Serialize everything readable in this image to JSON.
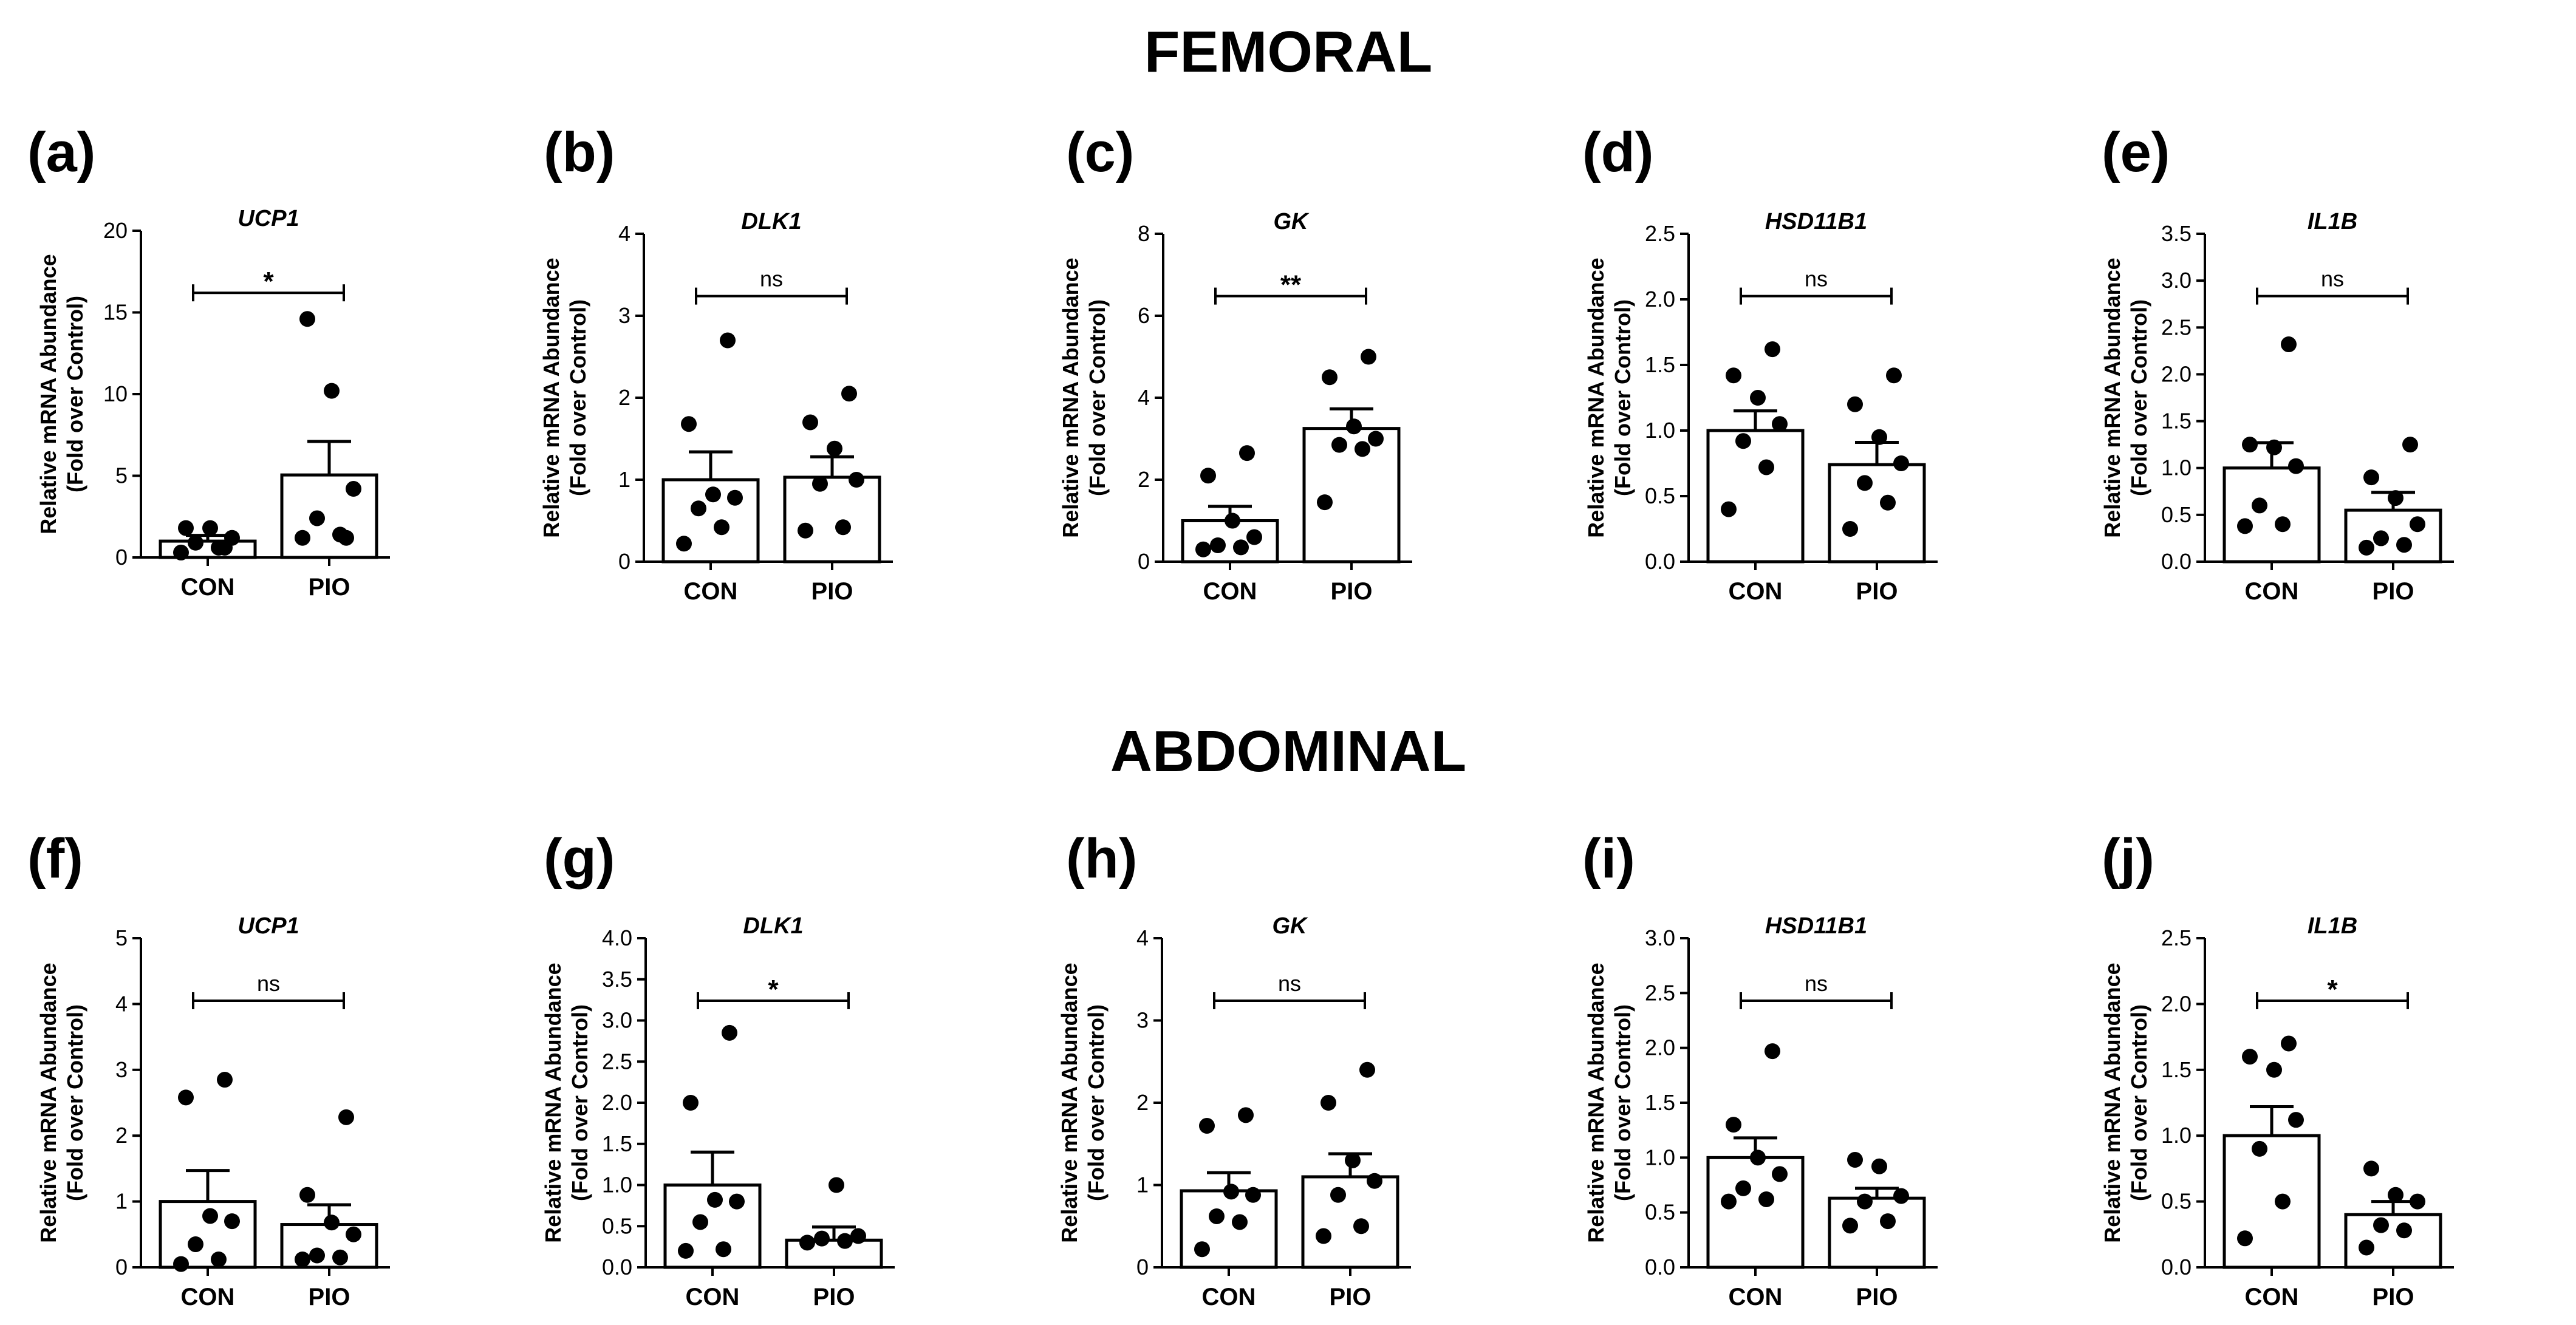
{
  "sections": [
    {
      "title": "FEMORAL"
    },
    {
      "title": "ABDOMINAL"
    }
  ],
  "chart_data": [
    {
      "type": "bar",
      "panel": "(a)",
      "section": "FEMORAL",
      "title": "UCP1",
      "categories": [
        "CON",
        "PIO"
      ],
      "ylabel": "Relative mRNA Abundance\n(Fold over Control)",
      "ylim": [
        0,
        20
      ],
      "yticks": [
        0,
        5,
        10,
        15,
        20
      ],
      "ytick_labels": [
        "0",
        "5",
        "10",
        "15",
        "20"
      ],
      "values": [
        1.0,
        5.05
      ],
      "sem": [
        0.35,
        2.05
      ],
      "points": [
        [
          0.3,
          0.6,
          0.9,
          1.2,
          1.8,
          1.8,
          0.6
        ],
        [
          1.2,
          1.4,
          2.4,
          4.2,
          10.2,
          14.6,
          1.2
        ]
      ],
      "significance": "*"
    },
    {
      "type": "bar",
      "panel": "(b)",
      "section": "FEMORAL",
      "title": "DLK1",
      "categories": [
        "CON",
        "PIO"
      ],
      "ylabel": "Relative mRNA Abundance\n(Fold over Control)",
      "ylim": [
        0,
        4
      ],
      "yticks": [
        0,
        1,
        2,
        3,
        4
      ],
      "ytick_labels": [
        "0",
        "1",
        "2",
        "3",
        "4"
      ],
      "values": [
        1.0,
        1.03
      ],
      "sem": [
        0.34,
        0.25
      ],
      "points": [
        [
          0.22,
          0.42,
          0.65,
          0.78,
          0.82,
          1.68,
          2.7
        ],
        [
          0.38,
          0.42,
          0.95,
          1.0,
          1.38,
          1.7,
          2.05
        ]
      ],
      "significance": "ns"
    },
    {
      "type": "bar",
      "panel": "(c)",
      "section": "FEMORAL",
      "title": "GK",
      "categories": [
        "CON",
        "PIO"
      ],
      "ylabel": "Relative mRNA Abundance\n(Fold over Control)",
      "ylim": [
        0,
        8
      ],
      "yticks": [
        0,
        2,
        4,
        6,
        8
      ],
      "ytick_labels": [
        "0",
        "2",
        "4",
        "6",
        "8"
      ],
      "values": [
        1.0,
        3.25
      ],
      "sem": [
        0.35,
        0.48
      ],
      "points": [
        [
          0.3,
          0.35,
          0.4,
          0.6,
          1.0,
          2.1,
          2.65
        ],
        [
          1.45,
          2.75,
          2.85,
          3.0,
          3.3,
          4.5,
          5.0
        ]
      ],
      "significance": "**"
    },
    {
      "type": "bar",
      "panel": "(d)",
      "section": "FEMORAL",
      "title": "HSD11B1",
      "categories": [
        "CON",
        "PIO"
      ],
      "ylabel": "Relative mRNA Abundance\n(Fold over Control)",
      "ylim": [
        0,
        2.5
      ],
      "yticks": [
        0,
        0.5,
        1,
        1.5,
        2,
        2.5
      ],
      "ytick_labels": [
        "0.0",
        "0.5",
        "1.0",
        "1.5",
        "2.0",
        "2.5"
      ],
      "values": [
        1.0,
        0.74
      ],
      "sem": [
        0.15,
        0.17
      ],
      "points": [
        [
          0.4,
          0.72,
          0.92,
          1.05,
          1.25,
          1.42,
          1.62
        ],
        [
          0.25,
          0.45,
          0.6,
          0.75,
          0.95,
          1.2,
          1.42
        ]
      ],
      "significance": "ns"
    },
    {
      "type": "bar",
      "panel": "(e)",
      "section": "FEMORAL",
      "title": "IL1B",
      "categories": [
        "CON",
        "PIO"
      ],
      "ylabel": "Relative mRNA Abundance\n(Fold over Control)",
      "ylim": [
        0,
        3.5
      ],
      "yticks": [
        0,
        0.5,
        1,
        1.5,
        2,
        2.5,
        3,
        3.5
      ],
      "ytick_labels": [
        "0.0",
        "0.5",
        "1.0",
        "1.5",
        "2.0",
        "2.5",
        "3.0",
        "3.5"
      ],
      "values": [
        1.0,
        0.55
      ],
      "sem": [
        0.27,
        0.19
      ],
      "points": [
        [
          0.38,
          0.4,
          0.6,
          1.02,
          1.22,
          1.25,
          2.32
        ],
        [
          0.15,
          0.18,
          0.25,
          0.4,
          0.68,
          0.9,
          1.25
        ]
      ],
      "significance": "ns"
    },
    {
      "type": "bar",
      "panel": "(f)",
      "section": "ABDOMINAL",
      "title": "UCP1",
      "categories": [
        "CON",
        "PIO"
      ],
      "ylabel": "Relative mRNA Abundance\n(Fold over Control)",
      "ylim": [
        0,
        5
      ],
      "yticks": [
        0,
        1,
        2,
        3,
        4,
        5
      ],
      "ytick_labels": [
        "0",
        "1",
        "2",
        "3",
        "4",
        "5"
      ],
      "values": [
        1.0,
        0.65
      ],
      "sem": [
        0.47,
        0.3
      ],
      "points": [
        [
          0.05,
          0.12,
          0.35,
          0.7,
          0.78,
          2.58,
          2.85
        ],
        [
          0.12,
          0.15,
          0.18,
          0.5,
          0.68,
          1.1,
          2.28
        ]
      ],
      "significance": "ns"
    },
    {
      "type": "bar",
      "panel": "(g)",
      "section": "ABDOMINAL",
      "title": "DLK1",
      "categories": [
        "CON",
        "PIO"
      ],
      "ylabel": "Relative mRNA Abundance\n(Fold over Control)",
      "ylim": [
        0,
        4
      ],
      "yticks": [
        0,
        0.5,
        1,
        1.5,
        2,
        2.5,
        3,
        3.5,
        4
      ],
      "ytick_labels": [
        "0.0",
        "0.5",
        "1.0",
        "1.5",
        "2.0",
        "2.5",
        "3.0",
        "3.5",
        "4.0"
      ],
      "values": [
        1.0,
        0.33
      ],
      "sem": [
        0.4,
        0.16
      ],
      "points": [
        [
          0.2,
          0.22,
          0.55,
          0.8,
          0.82,
          2.0,
          2.85
        ],
        [
          0.3,
          0.32,
          0.35,
          0.38,
          1.0
        ]
      ],
      "significance": "*"
    },
    {
      "type": "bar",
      "panel": "(h)",
      "section": "ABDOMINAL",
      "title": "GK",
      "categories": [
        "CON",
        "PIO"
      ],
      "ylabel": "Relative mRNA Abundance\n(Fold over Control)",
      "ylim": [
        0,
        4
      ],
      "yticks": [
        0,
        1,
        2,
        3,
        4
      ],
      "ytick_labels": [
        "0",
        "1",
        "2",
        "3",
        "4"
      ],
      "values": [
        0.93,
        1.1
      ],
      "sem": [
        0.22,
        0.28
      ],
      "points": [
        [
          0.22,
          0.55,
          0.62,
          0.88,
          0.92,
          1.72,
          1.85
        ],
        [
          0.38,
          0.5,
          0.88,
          1.05,
          1.3,
          2.0,
          2.4
        ]
      ],
      "significance": "ns"
    },
    {
      "type": "bar",
      "panel": "(i)",
      "section": "ABDOMINAL",
      "title": "HSD11B1",
      "categories": [
        "CON",
        "PIO"
      ],
      "ylabel": "Relative mRNA Abundance\n(Fold over Control)",
      "ylim": [
        0,
        3
      ],
      "yticks": [
        0,
        0.5,
        1,
        1.5,
        2,
        2.5,
        3
      ],
      "ytick_labels": [
        "0.0",
        "0.5",
        "1.0",
        "1.5",
        "2.0",
        "2.5",
        "3.0"
      ],
      "values": [
        1.0,
        0.63
      ],
      "sem": [
        0.18,
        0.09
      ],
      "points": [
        [
          0.6,
          0.62,
          0.72,
          0.85,
          1.0,
          1.3,
          1.97
        ],
        [
          0.38,
          0.42,
          0.6,
          0.65,
          0.92,
          0.98
        ]
      ],
      "significance": "ns"
    },
    {
      "type": "bar",
      "panel": "(j)",
      "section": "ABDOMINAL",
      "title": "IL1B",
      "categories": [
        "CON",
        "PIO"
      ],
      "ylabel": "Relative mRNA Abundance\n(Fold over Control)",
      "ylim": [
        0,
        2.5
      ],
      "yticks": [
        0,
        0.5,
        1,
        1.5,
        2,
        2.5
      ],
      "ytick_labels": [
        "0.0",
        "0.5",
        "1.0",
        "1.5",
        "2.0",
        "2.5"
      ],
      "values": [
        1.0,
        0.4
      ],
      "sem": [
        0.22,
        0.1
      ],
      "points": [
        [
          0.22,
          0.5,
          0.9,
          1.12,
          1.5,
          1.6,
          1.7
        ],
        [
          0.15,
          0.28,
          0.32,
          0.5,
          0.55,
          0.75
        ]
      ],
      "significance": "*"
    }
  ]
}
